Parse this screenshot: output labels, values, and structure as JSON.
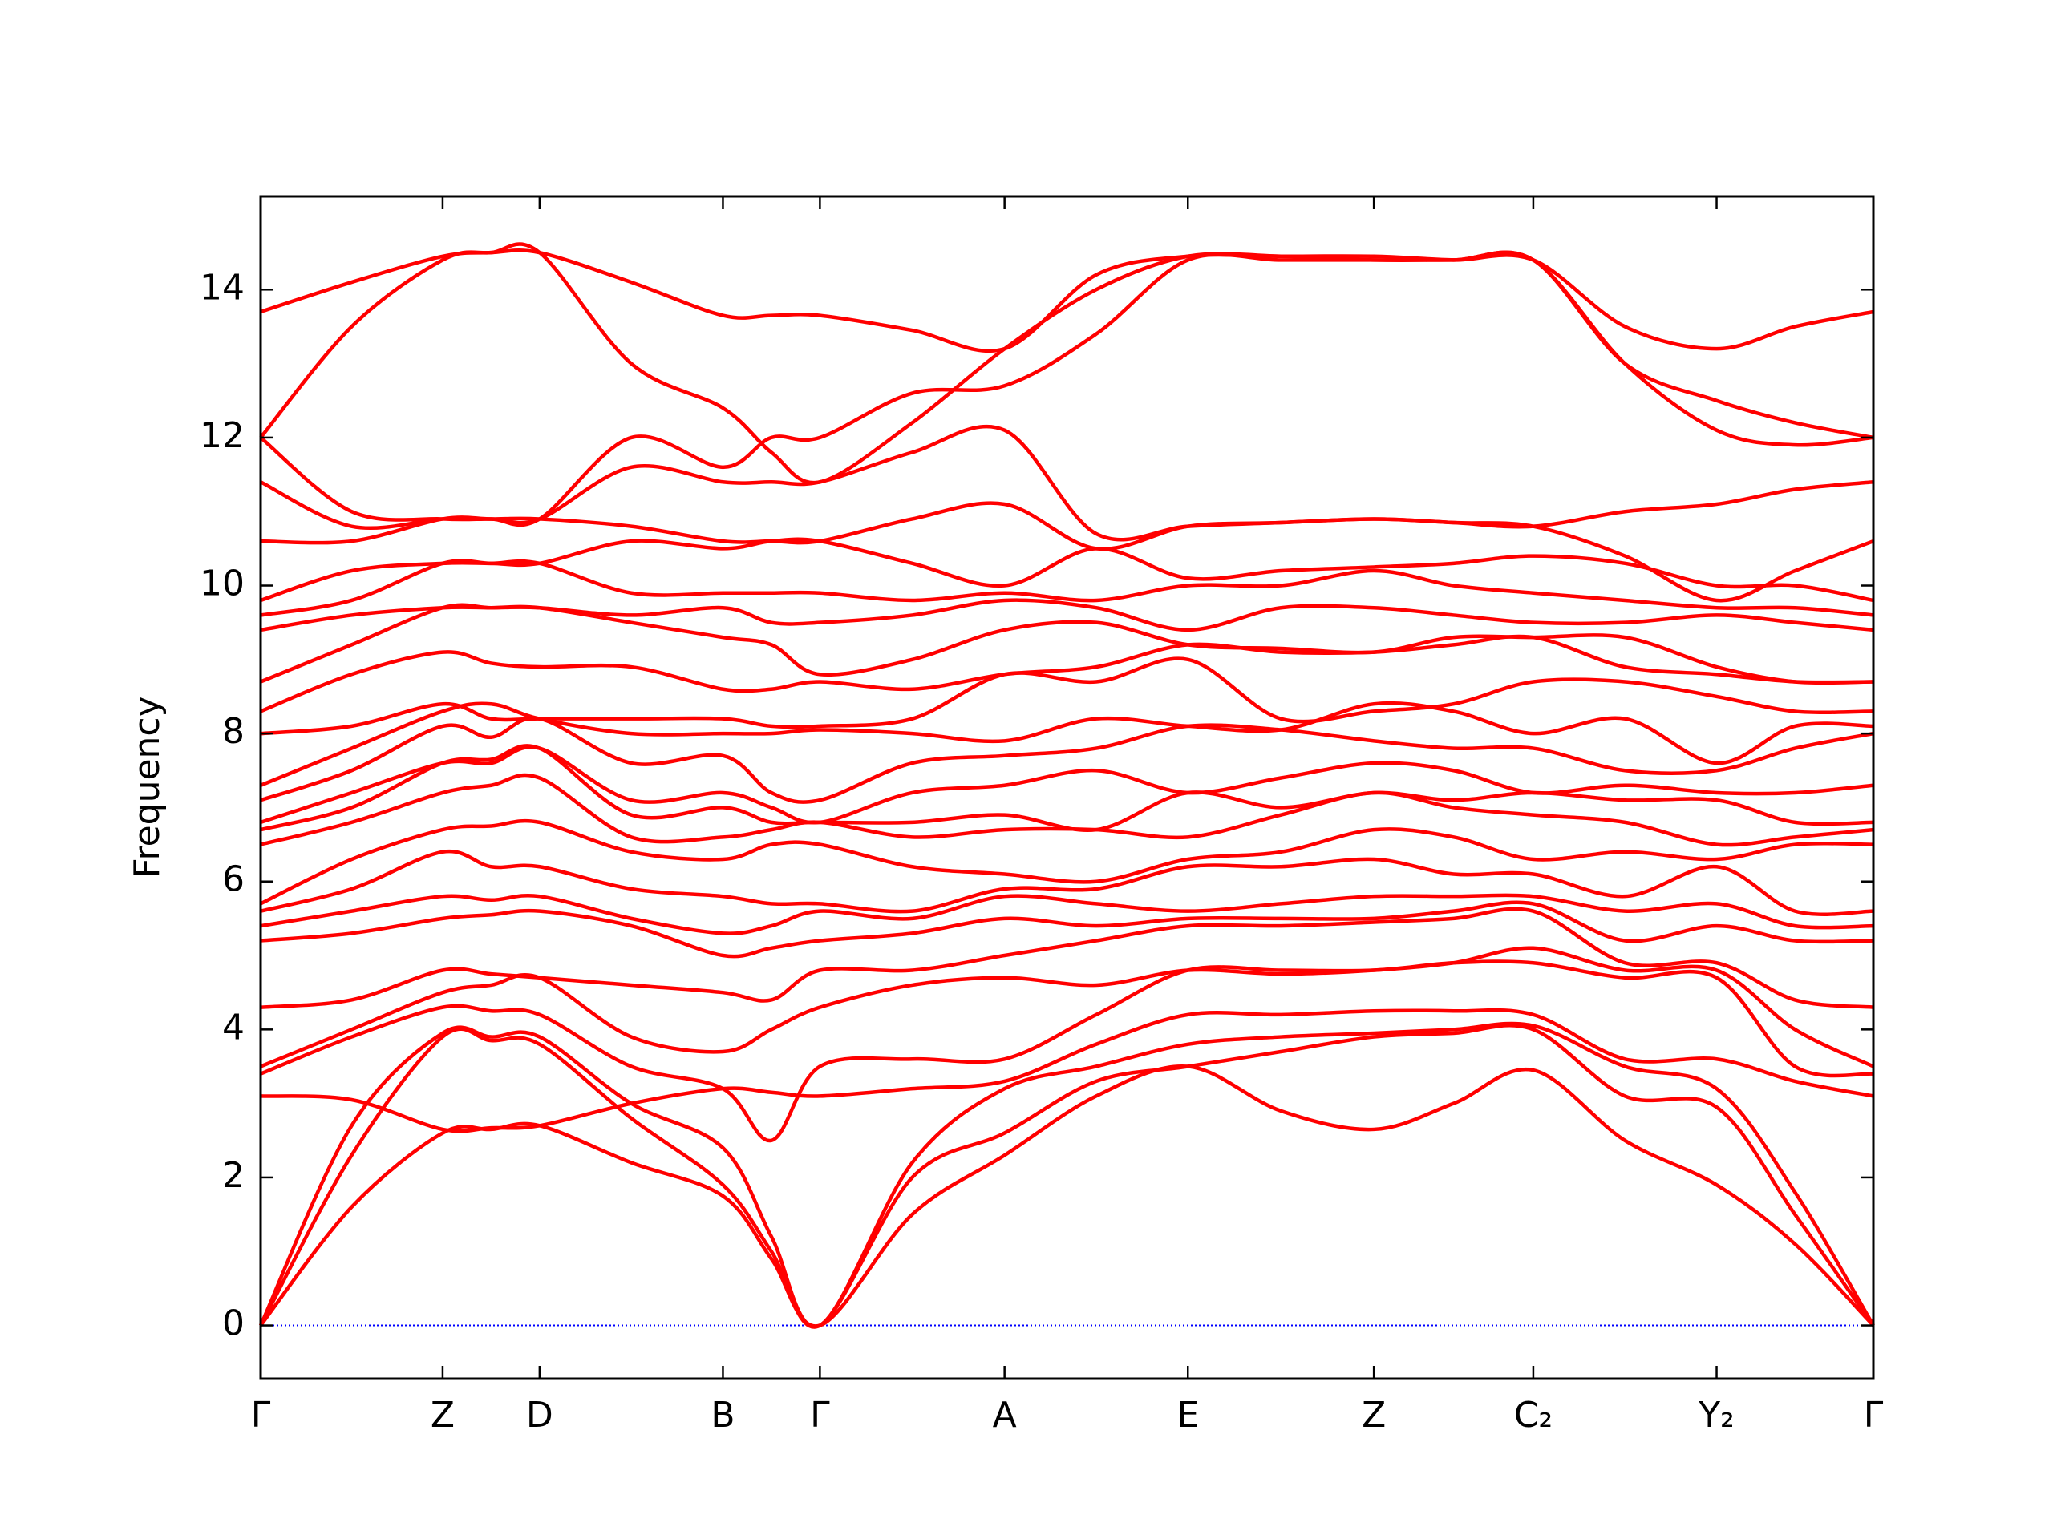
{
  "chart_data": {
    "type": "line",
    "y_label": "Frequency",
    "color": "#ff0000",
    "zero_line_color": "#0000ff",
    "xlim": [
      0,
      12.14
    ],
    "ylim": [
      -0.72,
      15.26
    ],
    "xticks": [
      {
        "value": 0,
        "label": "Γ"
      },
      {
        "value": 1.37,
        "label": "Z"
      },
      {
        "value": 2.1,
        "label": "D"
      },
      {
        "value": 3.48,
        "label": "B"
      },
      {
        "value": 4.21,
        "label": "Γ"
      },
      {
        "value": 5.6,
        "label": "A"
      },
      {
        "value": 6.98,
        "label": "E"
      },
      {
        "value": 8.38,
        "label": "Z"
      },
      {
        "value": 9.58,
        "label": "C₂"
      },
      {
        "value": 10.96,
        "label": "Y₂"
      },
      {
        "value": 12.14,
        "label": "Γ"
      }
    ],
    "yticks": [
      0,
      2,
      4,
      6,
      8,
      10,
      12,
      14
    ],
    "x": [
      0,
      0.685,
      1.37,
      1.735,
      2.1,
      2.79,
      3.48,
      3.845,
      4.21,
      4.905,
      5.6,
      6.29,
      6.98,
      7.68,
      8.38,
      8.98,
      9.58,
      10.27,
      10.96,
      11.55,
      12.14
    ],
    "series": [
      {
        "values": [
          0,
          1.6,
          2.6,
          2.65,
          2.7,
          2.2,
          1.75,
          0.9,
          0,
          1.5,
          2.3,
          3.1,
          3.5,
          2.9,
          2.65,
          3.0,
          3.45,
          2.5,
          1.9,
          1.1,
          0
        ]
      },
      {
        "values": [
          0,
          2.3,
          3.9,
          3.85,
          3.8,
          2.8,
          1.9,
          1.0,
          0,
          2.0,
          2.6,
          3.3,
          3.5,
          3.7,
          3.9,
          3.95,
          4.0,
          3.1,
          2.95,
          1.5,
          0
        ]
      },
      {
        "values": [
          0,
          2.7,
          3.95,
          3.9,
          3.9,
          3.0,
          2.4,
          1.2,
          0,
          2.2,
          3.2,
          3.5,
          3.8,
          3.9,
          3.95,
          4.0,
          4.05,
          3.5,
          3.2,
          1.8,
          0
        ]
      },
      {
        "values": [
          3.1,
          3.05,
          2.65,
          2.67,
          2.7,
          3.0,
          3.2,
          3.15,
          3.1,
          3.2,
          3.3,
          3.8,
          4.2,
          4.2,
          4.25,
          4.25,
          4.2,
          3.6,
          3.6,
          3.3,
          3.1
        ]
      },
      {
        "values": [
          3.4,
          3.9,
          4.3,
          4.25,
          4.2,
          3.5,
          3.2,
          2.5,
          3.5,
          3.6,
          3.6,
          4.2,
          4.8,
          4.8,
          4.8,
          4.9,
          4.9,
          4.7,
          4.7,
          3.5,
          3.4
        ]
      },
      {
        "values": [
          3.5,
          4.0,
          4.5,
          4.6,
          4.7,
          3.9,
          3.7,
          4.0,
          4.3,
          4.6,
          4.7,
          4.6,
          4.8,
          4.75,
          4.8,
          4.9,
          5.1,
          4.8,
          4.8,
          4.0,
          3.5
        ]
      },
      {
        "values": [
          4.3,
          4.4,
          4.8,
          4.75,
          4.7,
          4.6,
          4.5,
          4.4,
          4.8,
          4.8,
          5.0,
          5.2,
          5.4,
          5.4,
          5.45,
          5.5,
          5.6,
          4.9,
          4.9,
          4.4,
          4.3
        ]
      },
      {
        "values": [
          5.2,
          5.3,
          5.5,
          5.55,
          5.6,
          5.4,
          5.0,
          5.1,
          5.2,
          5.3,
          5.5,
          5.4,
          5.5,
          5.5,
          5.5,
          5.6,
          5.7,
          5.2,
          5.4,
          5.2,
          5.2
        ]
      },
      {
        "values": [
          5.4,
          5.6,
          5.8,
          5.75,
          5.8,
          5.5,
          5.3,
          5.4,
          5.6,
          5.5,
          5.8,
          5.7,
          5.6,
          5.7,
          5.8,
          5.8,
          5.8,
          5.6,
          5.7,
          5.4,
          5.4
        ]
      },
      {
        "values": [
          5.6,
          5.9,
          6.4,
          6.2,
          6.2,
          5.9,
          5.8,
          5.7,
          5.7,
          5.6,
          5.9,
          5.9,
          6.2,
          6.2,
          6.3,
          6.1,
          6.1,
          5.8,
          6.2,
          5.6,
          5.6
        ]
      },
      {
        "values": [
          5.7,
          6.3,
          6.7,
          6.75,
          6.8,
          6.4,
          6.3,
          6.5,
          6.5,
          6.2,
          6.1,
          6.0,
          6.3,
          6.4,
          6.7,
          6.6,
          6.3,
          6.4,
          6.3,
          6.5,
          6.5
        ]
      },
      {
        "values": [
          6.5,
          6.8,
          7.2,
          7.3,
          7.4,
          6.6,
          6.6,
          6.7,
          6.8,
          6.6,
          6.7,
          6.7,
          6.6,
          6.9,
          7.2,
          7.0,
          6.9,
          6.8,
          6.5,
          6.6,
          6.7
        ]
      },
      {
        "values": [
          6.7,
          7.0,
          7.6,
          7.65,
          7.8,
          6.9,
          7.0,
          6.8,
          6.8,
          6.8,
          6.9,
          6.7,
          7.2,
          7.0,
          7.2,
          7.1,
          7.2,
          7.1,
          7.1,
          6.8,
          6.8
        ]
      },
      {
        "values": [
          6.8,
          7.2,
          7.6,
          7.6,
          7.8,
          7.1,
          7.2,
          7.0,
          6.8,
          7.2,
          7.3,
          7.5,
          7.2,
          7.4,
          7.6,
          7.5,
          7.2,
          7.3,
          7.2,
          7.2,
          7.3
        ]
      },
      {
        "values": [
          7.1,
          7.5,
          8.1,
          7.95,
          8.2,
          7.6,
          7.7,
          7.2,
          7.1,
          7.6,
          7.7,
          7.8,
          8.1,
          8.05,
          7.9,
          7.8,
          7.8,
          7.5,
          7.5,
          7.8,
          8.0
        ]
      },
      {
        "values": [
          7.3,
          7.8,
          8.3,
          8.4,
          8.2,
          8.0,
          8.0,
          8.0,
          8.05,
          8.0,
          7.9,
          8.2,
          8.1,
          8.05,
          8.4,
          8.3,
          8.0,
          8.2,
          7.6,
          8.1,
          8.1
        ]
      },
      {
        "values": [
          8.0,
          8.1,
          8.4,
          8.2,
          8.2,
          8.2,
          8.2,
          8.1,
          8.1,
          8.2,
          8.8,
          8.7,
          9.0,
          8.2,
          8.3,
          8.4,
          8.7,
          8.7,
          8.5,
          8.3,
          8.3
        ]
      },
      {
        "values": [
          8.3,
          8.8,
          9.1,
          8.95,
          8.9,
          8.9,
          8.6,
          8.6,
          8.7,
          8.6,
          8.8,
          8.9,
          9.2,
          9.1,
          9.1,
          9.2,
          9.3,
          8.9,
          8.8,
          8.7,
          8.7
        ]
      },
      {
        "values": [
          8.7,
          9.2,
          9.7,
          9.7,
          9.7,
          9.5,
          9.3,
          9.2,
          8.8,
          9.0,
          9.4,
          9.5,
          9.2,
          9.15,
          9.1,
          9.3,
          9.3,
          9.3,
          8.9,
          8.7,
          8.7
        ]
      },
      {
        "values": [
          9.4,
          9.6,
          9.7,
          9.7,
          9.7,
          9.6,
          9.7,
          9.5,
          9.5,
          9.6,
          9.8,
          9.7,
          9.4,
          9.7,
          9.7,
          9.6,
          9.5,
          9.5,
          9.6,
          9.5,
          9.4
        ]
      },
      {
        "values": [
          9.6,
          9.8,
          10.3,
          10.3,
          10.3,
          9.9,
          9.9,
          9.9,
          9.9,
          9.8,
          9.9,
          9.8,
          10.0,
          10.0,
          10.2,
          10.0,
          9.9,
          9.8,
          9.7,
          9.7,
          9.6
        ]
      },
      {
        "values": [
          9.8,
          10.2,
          10.3,
          10.3,
          10.3,
          10.6,
          10.5,
          10.6,
          10.6,
          10.3,
          10.0,
          10.5,
          10.1,
          10.2,
          10.25,
          10.3,
          10.4,
          10.3,
          10.0,
          10.0,
          9.8
        ]
      },
      {
        "values": [
          10.6,
          10.6,
          10.9,
          10.9,
          10.9,
          10.8,
          10.6,
          10.6,
          10.6,
          10.9,
          11.1,
          10.5,
          10.8,
          10.85,
          10.9,
          10.85,
          10.8,
          10.4,
          9.8,
          10.2,
          10.6
        ]
      },
      {
        "values": [
          11.4,
          10.8,
          10.9,
          10.9,
          10.9,
          11.6,
          11.4,
          11.4,
          11.4,
          11.8,
          12.1,
          10.7,
          10.8,
          10.85,
          10.9,
          10.85,
          10.8,
          11.0,
          11.1,
          11.3,
          11.4
        ]
      },
      {
        "values": [
          12.0,
          11.0,
          10.9,
          10.9,
          10.9,
          12.0,
          11.6,
          12.0,
          12.0,
          12.6,
          12.7,
          13.4,
          14.4,
          14.4,
          14.4,
          14.4,
          14.4,
          13.0,
          12.1,
          11.9,
          12.0
        ]
      },
      {
        "values": [
          12.0,
          13.5,
          14.4,
          14.5,
          14.5,
          13.0,
          12.4,
          11.8,
          11.4,
          12.2,
          13.2,
          14.0,
          14.45,
          14.45,
          14.4,
          14.4,
          14.4,
          13.0,
          12.5,
          12.2,
          12.0
        ]
      },
      {
        "values": [
          13.7,
          14.1,
          14.45,
          14.5,
          14.5,
          14.1,
          13.65,
          13.65,
          13.65,
          13.45,
          13.2,
          14.2,
          14.45,
          14.45,
          14.45,
          14.4,
          14.4,
          13.5,
          13.2,
          13.5,
          13.7
        ]
      }
    ]
  }
}
